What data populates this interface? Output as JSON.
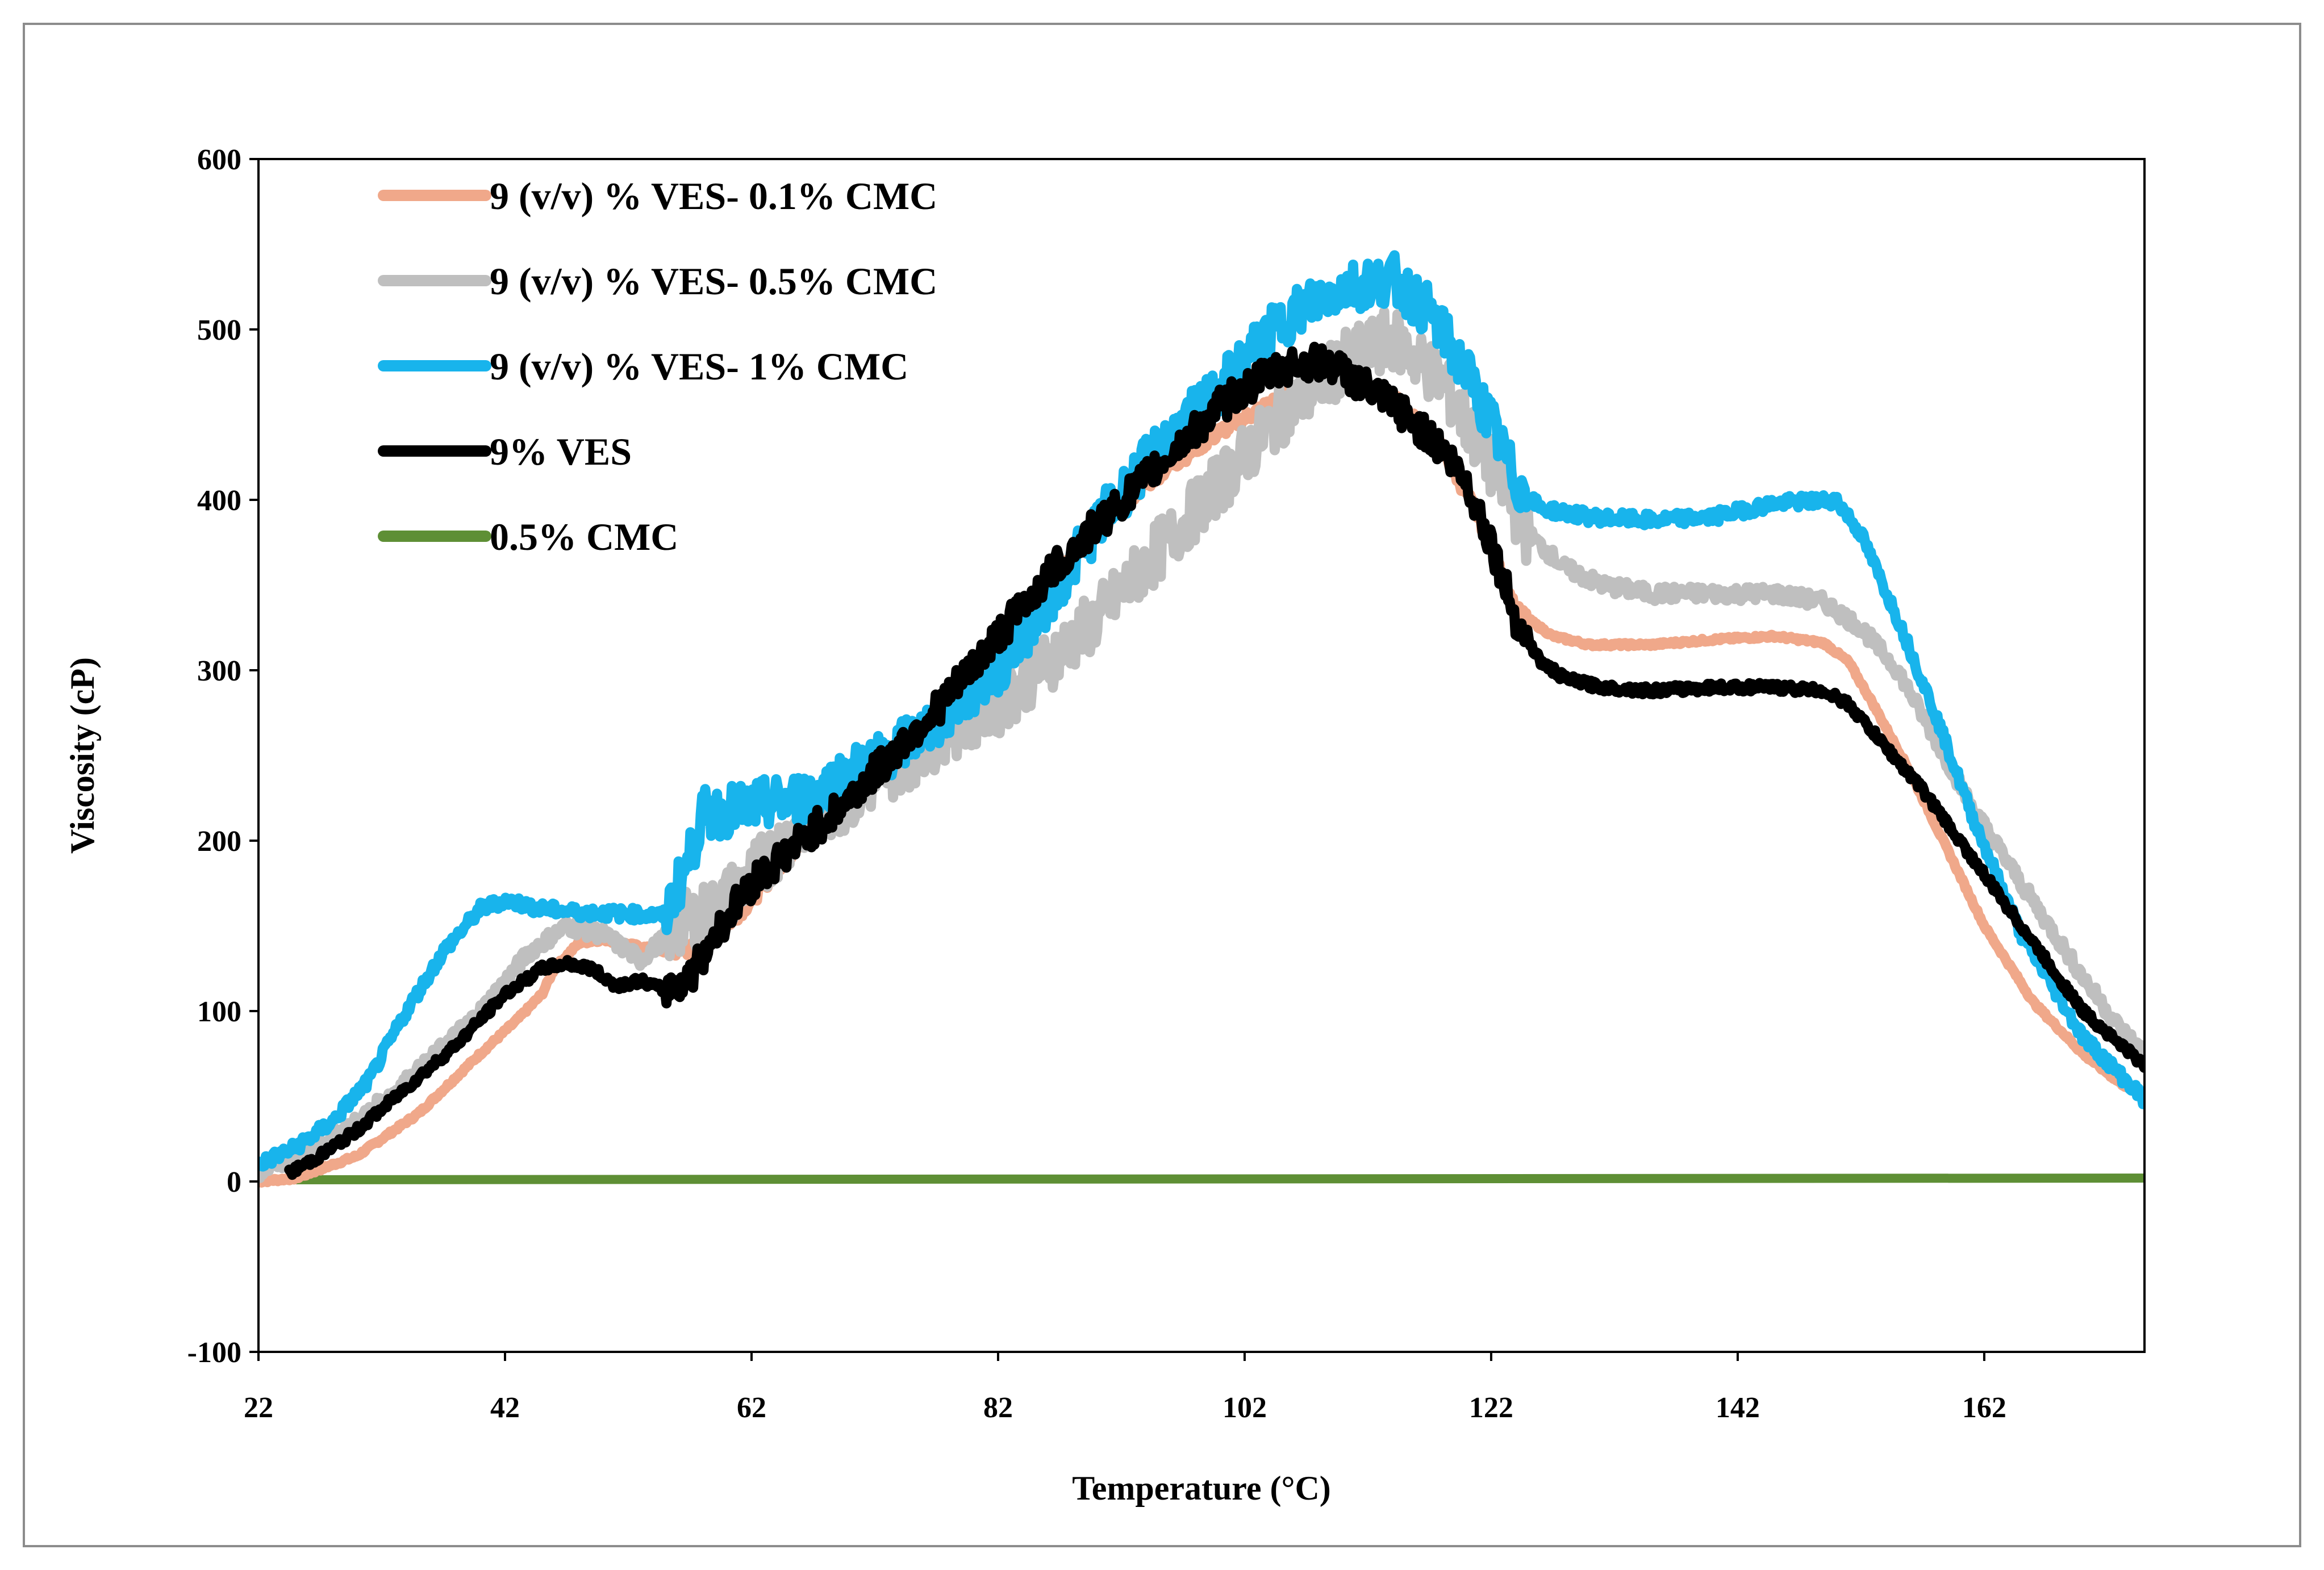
{
  "chart_data": {
    "type": "line",
    "title": "",
    "xlabel": "Temperature (°C)",
    "ylabel": "Viscosity (cP)",
    "xlim": [
      22,
      175
    ],
    "ylim": [
      -100,
      600
    ],
    "xticks": [
      "22",
      "42",
      "62",
      "82",
      "102",
      "122",
      "142",
      "162"
    ],
    "yticks": [
      "-100",
      "0",
      "100",
      "200",
      "300",
      "400",
      "500",
      "600"
    ],
    "legend_position": "top-left",
    "grid": false,
    "series": [
      {
        "name": "9 (v/v) % VES- 0.1% CMC",
        "color": "#f0a88a",
        "noise": 4,
        "x": [
          22,
          25,
          30,
          35,
          40,
          43,
          45,
          46,
          48,
          50,
          55,
          58,
          62,
          66,
          70,
          74,
          78,
          82,
          86,
          90,
          95,
          100,
          105,
          108,
          110,
          114,
          118,
          121,
          124,
          127,
          130,
          135,
          140,
          145,
          149,
          151,
          153,
          156,
          159,
          162,
          166,
          170,
          173,
          175
        ],
        "y": [
          0,
          2,
          15,
          40,
          75,
          95,
          110,
          125,
          140,
          142,
          135,
          137,
          165,
          200,
          225,
          255,
          280,
          310,
          350,
          385,
          415,
          440,
          460,
          470,
          470,
          460,
          430,
          390,
          335,
          320,
          315,
          315,
          318,
          320,
          316,
          305,
          280,
          240,
          195,
          150,
          105,
          75,
          58,
          50
        ]
      },
      {
        "name": "9 (v/v) % VES- 0.5% CMC",
        "color": "#bfbfbf",
        "noise": 18,
        "x": [
          22,
          25,
          30,
          35,
          40,
          44,
          47,
          50,
          53,
          56,
          59,
          62,
          66,
          70,
          74,
          78,
          82,
          86,
          90,
          95,
          100,
          105,
          110,
          114,
          118,
          122,
          125,
          128,
          131,
          135,
          140,
          145,
          149,
          152,
          155,
          158,
          161,
          165,
          170,
          173,
          175
        ],
        "y": [
          5,
          15,
          35,
          65,
          100,
          135,
          150,
          145,
          130,
          150,
          160,
          180,
          210,
          225,
          245,
          265,
          280,
          305,
          330,
          370,
          410,
          450,
          480,
          495,
          470,
          420,
          380,
          360,
          350,
          345,
          345,
          345,
          340,
          325,
          300,
          260,
          220,
          175,
          120,
          90,
          75
        ]
      },
      {
        "name": "9 (v/v) % VES- 1% CMC",
        "color": "#18b4ec",
        "noise": 15,
        "x": [
          22,
          25,
          28,
          31,
          34,
          37,
          40,
          42,
          45,
          48,
          52,
          55,
          57,
          58,
          62,
          66,
          70,
          74,
          78,
          82,
          86,
          90,
          95,
          100,
          103,
          106,
          110,
          114,
          117,
          120,
          122,
          124,
          126,
          130,
          135,
          140,
          145,
          150,
          152,
          155,
          158,
          161,
          165,
          170,
          175
        ],
        "y": [
          10,
          20,
          35,
          60,
          100,
          135,
          160,
          165,
          160,
          158,
          157,
          156,
          190,
          215,
          220,
          225,
          240,
          255,
          275,
          300,
          340,
          385,
          430,
          465,
          490,
          510,
          525,
          530,
          510,
          475,
          445,
          410,
          395,
          390,
          388,
          390,
          398,
          400,
          380,
          330,
          275,
          215,
          145,
          85,
          48
        ]
      },
      {
        "name": "9% VES",
        "color": "#000000",
        "noise": 10,
        "x": [
          24.5,
          27,
          30,
          34,
          38,
          42,
          45,
          47,
          49,
          51,
          53,
          55,
          57,
          59,
          62,
          66,
          70,
          74,
          78,
          82,
          86,
          90,
          95,
          100,
          103,
          106,
          109,
          112,
          115,
          118,
          120,
          122,
          124,
          126,
          128,
          131,
          135,
          140,
          145,
          149,
          151,
          154,
          157,
          160,
          165,
          170,
          175
        ],
        "y": [
          5,
          15,
          30,
          55,
          80,
          110,
          125,
          128,
          125,
          115,
          118,
          112,
          120,
          145,
          175,
          200,
          225,
          255,
          285,
          320,
          355,
          385,
          420,
          455,
          470,
          480,
          480,
          465,
          450,
          430,
          410,
          375,
          330,
          305,
          295,
          290,
          288,
          290,
          290,
          288,
          280,
          255,
          230,
          200,
          150,
          100,
          68
        ]
      },
      {
        "name": "0.5% CMC",
        "color": "#5e8f35",
        "noise": 0,
        "x": [
          22,
          175
        ],
        "y": [
          1,
          2
        ]
      }
    ]
  }
}
